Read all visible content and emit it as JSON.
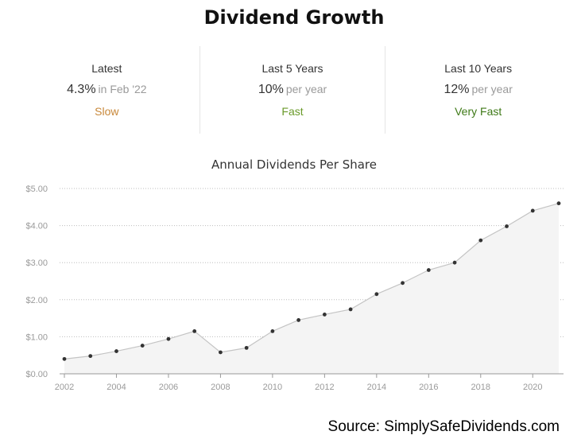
{
  "title": "Dividend Growth",
  "stats": [
    {
      "label": "Latest",
      "value": "4.3%",
      "suffix": "in Feb '22",
      "rating": "Slow",
      "rating_color": "#c8883a"
    },
    {
      "label": "Last 5 Years",
      "value": "10%",
      "suffix": "per year",
      "rating": "Fast",
      "rating_color": "#6a9a2a"
    },
    {
      "label": "Last 10 Years",
      "value": "12%",
      "suffix": "per year",
      "rating": "Very Fast",
      "rating_color": "#3f7a18"
    }
  ],
  "chart_data": {
    "type": "area",
    "title": "Annual Dividends Per Share",
    "x": [
      2002,
      2003,
      2004,
      2005,
      2006,
      2007,
      2008,
      2009,
      2010,
      2011,
      2012,
      2013,
      2014,
      2015,
      2016,
      2017,
      2018,
      2019,
      2020,
      2021
    ],
    "values": [
      0.4,
      0.48,
      0.61,
      0.76,
      0.94,
      1.15,
      0.58,
      0.7,
      1.15,
      1.45,
      1.6,
      1.74,
      2.15,
      2.45,
      2.8,
      3.0,
      3.6,
      3.98,
      4.4,
      4.6
    ],
    "xticks": [
      2002,
      2004,
      2006,
      2008,
      2010,
      2012,
      2014,
      2016,
      2018,
      2020
    ],
    "yticks": [
      "$0.00",
      "$1.00",
      "$2.00",
      "$3.00",
      "$4.00",
      "$5.00"
    ],
    "ylim": [
      0,
      5
    ],
    "xlim": [
      2002,
      2021
    ],
    "grid": true,
    "line_color": "#c4c4c4",
    "fill_color": "#f4f4f4",
    "point_color": "#333333"
  },
  "source": "Source: SimplySafeDividends.com"
}
